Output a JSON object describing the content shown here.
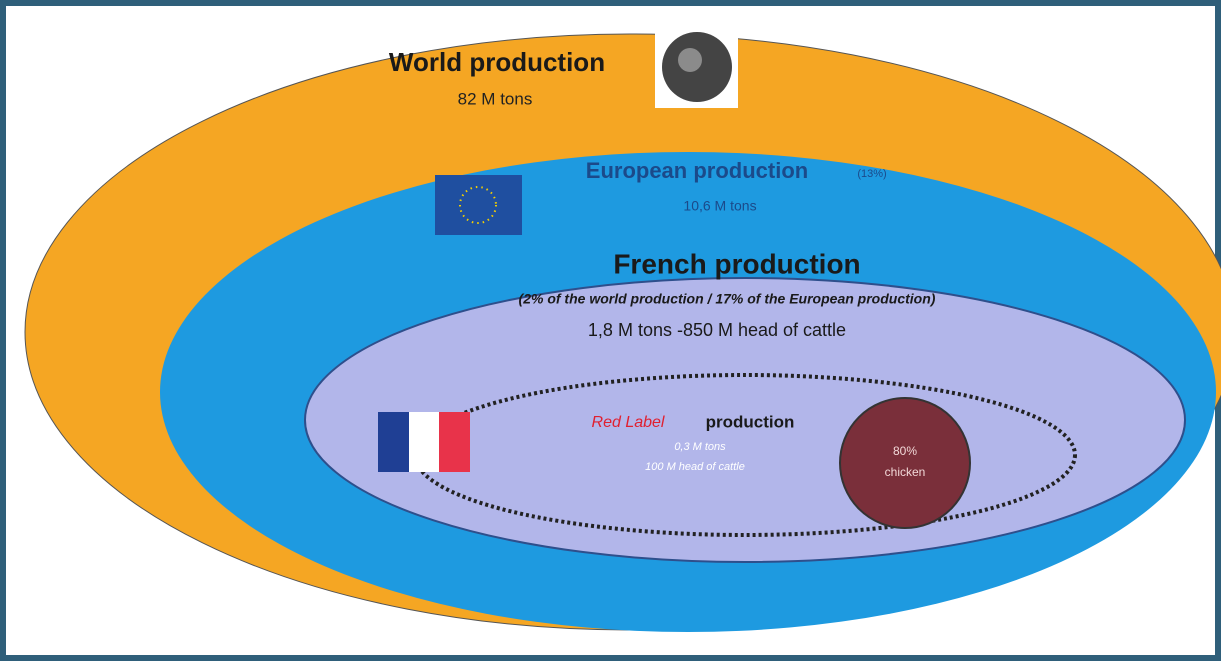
{
  "world": {
    "title": "World production",
    "amount": "82 M tons"
  },
  "europe": {
    "title": "European production",
    "share": "(13%)",
    "amount": "10,6 M tons"
  },
  "france": {
    "title": "French production",
    "note": "(2% of the world production / 17% of the European production)",
    "amount": "1,8 M tons -850 M head of cattle"
  },
  "red_label": {
    "label": "Red Label",
    "title": "production",
    "amount": "0,3 M tons",
    "cattle": "100 M head of cattle"
  },
  "chicken": {
    "share": "80%",
    "label": "chicken"
  }
}
